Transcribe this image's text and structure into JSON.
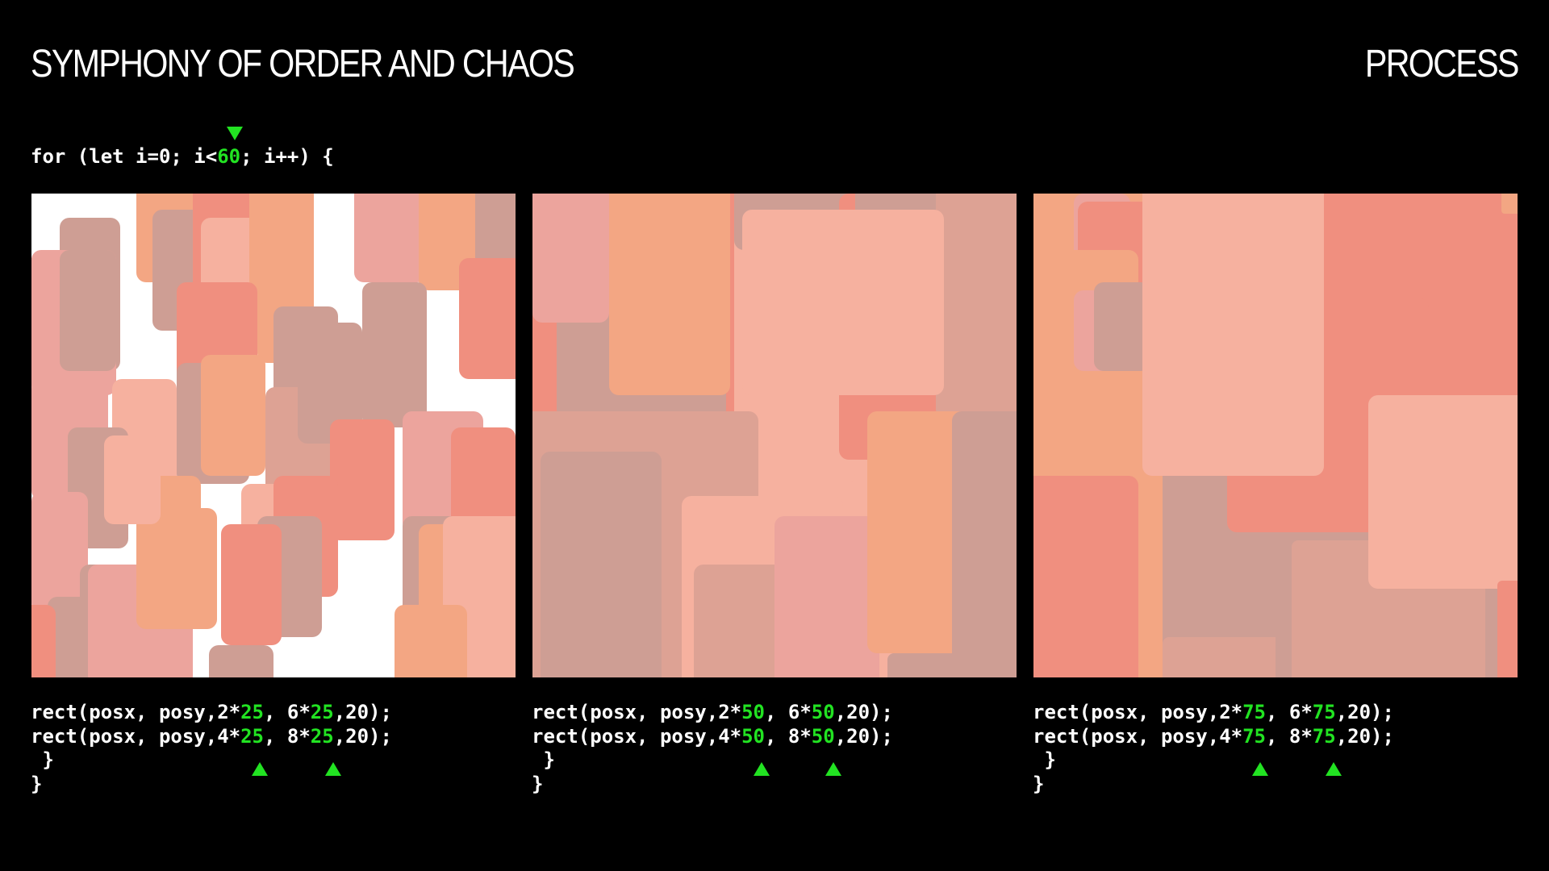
{
  "header": {
    "title": "SYMPHONY OF ORDER AND CHAOS",
    "section": "PROCESS"
  },
  "loop": {
    "prefix": "for (let i=0; i<",
    "count": "60",
    "suffix": "; i++) {"
  },
  "panels": [
    {
      "scale": "25",
      "line1_prefix": "rect(posx, posy,2*",
      "line1_mid": ", 6*",
      "line1_suffix": ",20);",
      "line2_prefix": "rect(posx, posy,4*",
      "line2_mid": ", 8*",
      "line2_suffix": ",20);",
      "close_inner": " }",
      "close_outer": "}"
    },
    {
      "scale": "50",
      "line1_prefix": "rect(posx, posy,2*",
      "line1_mid": ", 6*",
      "line1_suffix": ",20);",
      "line2_prefix": "rect(posx, posy,4*",
      "line2_mid": ", 8*",
      "line2_suffix": ",20);",
      "close_inner": " }",
      "close_outer": "}"
    },
    {
      "scale": "75",
      "line1_prefix": "rect(posx, posy,2*",
      "line1_mid": ", 6*",
      "line1_suffix": ",20);",
      "line2_prefix": "rect(posx, posy,4*",
      "line2_mid": ", 8*",
      "line2_suffix": ",20);",
      "close_inner": " }",
      "close_outer": "}"
    }
  ],
  "colors": {
    "highlight": "#22e322",
    "palette": [
      "#f3a683",
      "#ce9e94",
      "#f08f7f",
      "#eca49d",
      "#f6b19f",
      "#dda294"
    ]
  }
}
